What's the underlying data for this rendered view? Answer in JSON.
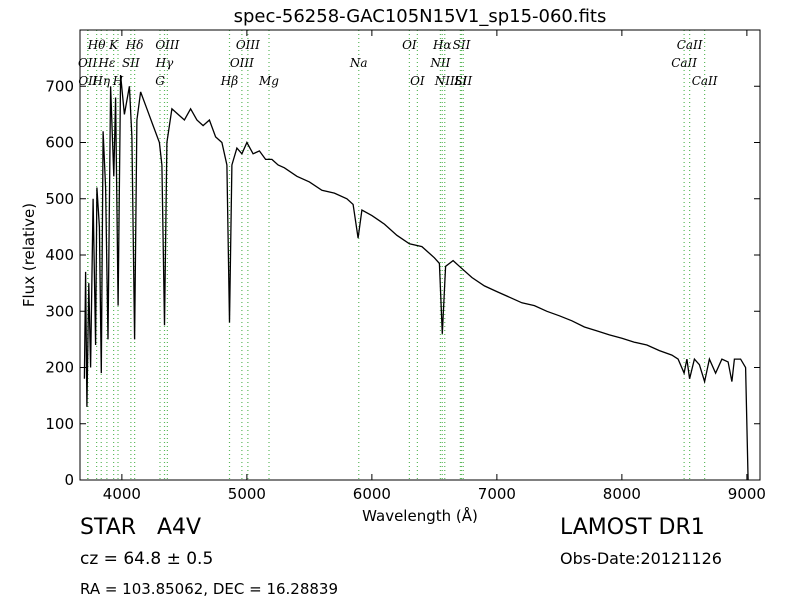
{
  "chart_data": {
    "type": "line",
    "title": "spec-56258-GAC105N15V1_sp15-060.fits",
    "x_label": "Wavelength (Å)",
    "y_label": "Flux (relative)",
    "xlim": [
      3665,
      9105
    ],
    "ylim": [
      0,
      800
    ],
    "xticks": [
      4000,
      5000,
      6000,
      7000,
      8000,
      9000
    ],
    "yticks": [
      0,
      100,
      200,
      300,
      400,
      500,
      600,
      700
    ],
    "line_color": "#000000",
    "marker_color": "#5cb85c",
    "x": [
      3700,
      3710,
      3720,
      3735,
      3750,
      3770,
      3790,
      3800,
      3820,
      3835,
      3850,
      3870,
      3889,
      3910,
      3935,
      3950,
      3970,
      3990,
      4020,
      4060,
      4080,
      4102,
      4120,
      4150,
      4200,
      4250,
      4300,
      4320,
      4341,
      4360,
      4400,
      4450,
      4500,
      4550,
      4600,
      4650,
      4700,
      4750,
      4800,
      4840,
      4861,
      4880,
      4920,
      4960,
      5000,
      5050,
      5100,
      5150,
      5200,
      5250,
      5300,
      5400,
      5500,
      5600,
      5700,
      5800,
      5850,
      5890,
      5920,
      6000,
      6100,
      6200,
      6300,
      6400,
      6500,
      6540,
      6563,
      6590,
      6650,
      6700,
      6800,
      6900,
      7000,
      7100,
      7200,
      7300,
      7400,
      7500,
      7600,
      7700,
      7800,
      7900,
      8000,
      8100,
      8200,
      8300,
      8400,
      8450,
      8498,
      8520,
      8542,
      8580,
      8620,
      8662,
      8700,
      8750,
      8800,
      8850,
      8880,
      8900,
      8950,
      8990,
      9010
    ],
    "series": [
      {
        "name": "Flux",
        "values": [
          180,
          370,
          130,
          350,
          200,
          500,
          240,
          520,
          450,
          190,
          620,
          520,
          250,
          700,
          540,
          680,
          310,
          720,
          650,
          700,
          610,
          250,
          640,
          690,
          660,
          630,
          600,
          560,
          275,
          600,
          660,
          650,
          640,
          660,
          640,
          630,
          640,
          610,
          600,
          560,
          280,
          560,
          590,
          580,
          600,
          580,
          585,
          570,
          570,
          560,
          555,
          540,
          530,
          515,
          510,
          500,
          490,
          430,
          480,
          470,
          455,
          435,
          420,
          415,
          395,
          385,
          260,
          380,
          390,
          380,
          360,
          345,
          335,
          325,
          315,
          310,
          300,
          292,
          283,
          272,
          265,
          258,
          252,
          245,
          240,
          230,
          222,
          215,
          190,
          215,
          180,
          215,
          205,
          175,
          215,
          190,
          215,
          210,
          175,
          215,
          215,
          200,
          0
        ]
      }
    ],
    "lines": [
      {
        "label": "OII",
        "x": 3726
      },
      {
        "label": "OII",
        "x": 3729
      },
      {
        "label": "Hθ",
        "x": 3798
      },
      {
        "label": "Hη",
        "x": 3835
      },
      {
        "label": "K",
        "x": 3934
      },
      {
        "label": "Hε",
        "x": 3880
      },
      {
        "label": "H",
        "x": 3969
      },
      {
        "label": "SII",
        "x": 4072
      },
      {
        "label": "Hδ",
        "x": 4102
      },
      {
        "label": "G",
        "x": 4305
      },
      {
        "label": "Hγ",
        "x": 4341
      },
      {
        "label": "OIII",
        "x": 4364
      },
      {
        "label": "Hβ",
        "x": 4861
      },
      {
        "label": "OIII",
        "x": 4960
      },
      {
        "label": "OIII",
        "x": 5008
      },
      {
        "label": "Mg",
        "x": 5177
      },
      {
        "label": "Na",
        "x": 5895
      },
      {
        "label": "OI",
        "x": 6300
      },
      {
        "label": "OI",
        "x": 6364
      },
      {
        "label": "NII",
        "x": 6548
      },
      {
        "label": "Hα",
        "x": 6563
      },
      {
        "label": "NII",
        "x": 6583
      },
      {
        "label": "Li",
        "x": 6708
      },
      {
        "label": "SII",
        "x": 6717
      },
      {
        "label": "SII",
        "x": 6731
      },
      {
        "label": "CaII",
        "x": 8498
      },
      {
        "label": "CaII",
        "x": 8542
      },
      {
        "label": "CaII",
        "x": 8662
      }
    ]
  },
  "info": {
    "object": "STAR   A4V",
    "redshift": "cz = 64.8 ± 0.5",
    "coords": "RA = 103.85062, DEC = 16.28839",
    "survey": "LAMOST DR1",
    "obs_date": "Obs-Date:20121126"
  }
}
